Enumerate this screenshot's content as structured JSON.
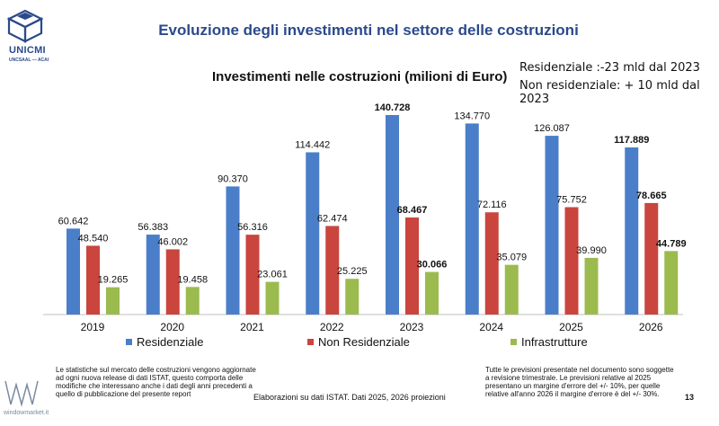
{
  "header": {
    "logo_text": "UNICMI",
    "logo_subtext": "UNCSAAL — ACAI",
    "title": "Evoluzione degli investimenti nel settore delle costruzioni"
  },
  "notes": {
    "line1": "Residenziale :-23 mld dal 2023",
    "line2": "Non residenziale: + 10 mld dal 2023"
  },
  "chart_data": {
    "type": "bar",
    "title": "Investimenti nelle costruzioni (milioni di Euro)",
    "categories": [
      "2019",
      "2020",
      "2021",
      "2022",
      "2023",
      "2024",
      "2025",
      "2026"
    ],
    "series": [
      {
        "name": "Residenziale",
        "color": "#4a7ec9",
        "values": [
          60642,
          56383,
          90370,
          114442,
          140728,
          134770,
          126087,
          117889
        ],
        "labels": [
          "60.642",
          "56.383",
          "90.370",
          "114.442",
          "140.728",
          "134.770",
          "126.087",
          "117.889"
        ],
        "bold": [
          false,
          false,
          false,
          false,
          true,
          false,
          false,
          true
        ]
      },
      {
        "name": "Non Residenziale",
        "color": "#c9453e",
        "values": [
          48540,
          46002,
          56316,
          62474,
          68467,
          72116,
          75752,
          78665
        ],
        "labels": [
          "48.540",
          "46.002",
          "56.316",
          "62.474",
          "68.467",
          "72.116",
          "75.752",
          "78.665"
        ],
        "bold": [
          false,
          false,
          false,
          false,
          true,
          false,
          false,
          true
        ]
      },
      {
        "name": "Infrastrutture",
        "color": "#9bbb4f",
        "values": [
          19265,
          19458,
          23061,
          25225,
          30066,
          35079,
          39990,
          44789
        ],
        "labels": [
          "19.265",
          "19.458",
          "23.061",
          "25.225",
          "30.066",
          "35.079",
          "39.990",
          "44.789"
        ],
        "bold": [
          false,
          false,
          false,
          false,
          true,
          false,
          false,
          true
        ]
      }
    ],
    "ylim": [
      0,
      140728
    ],
    "grid": false,
    "legend": "bottom"
  },
  "footer": {
    "left": "Le statistiche sul mercato delle costruzioni vengono aggiornate ad ogni nuova release di dati ISTAT, questo comporta delle modifiche che interessano anche i dati degli anni precedenti a quello di pubblicazione del presente report",
    "center": "Elaborazioni su dati ISTAT. Dati 2025, 2026 proiezioni",
    "right": "Tutte le previsioni presentate nel documento sono soggette a revisione trimestrale. Le previsioni relative al 2025 presentano un margine d'errore del +/- 10%, per quelle relative all'anno 2026 il margine d'errore è del +/- 30%.",
    "page_number": "13",
    "watermark": "windowmarket.it"
  }
}
